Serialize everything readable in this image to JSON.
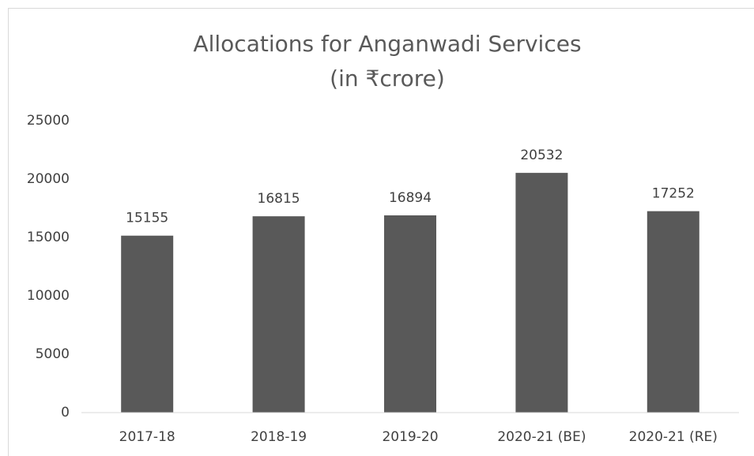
{
  "chart_data": {
    "type": "bar",
    "title": "Allocations for Anganwadi Services",
    "subtitle": "(in ₹crore)",
    "categories": [
      "2017-18",
      "2018-19",
      "2019-20",
      "2020-21 (BE)",
      "2020-21 (RE)"
    ],
    "values": [
      15155,
      16815,
      16894,
      20532,
      17252
    ],
    "color": "#595959",
    "ylim": [
      0,
      25000
    ],
    "yticks": [
      0,
      5000,
      10000,
      15000,
      20000,
      25000
    ],
    "grid": false,
    "data_labels": true
  }
}
